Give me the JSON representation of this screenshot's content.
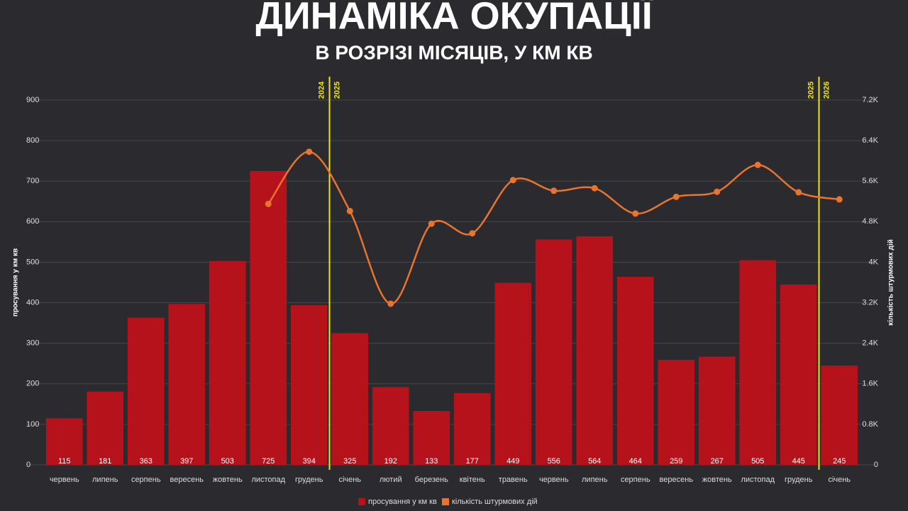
{
  "chart_data": {
    "type": "bar",
    "title": "ДИНАМІКА ОКУПАЦІЇ",
    "subtitle": "В РОЗРІЗІ МІСЯЦІВ, У КМ КВ",
    "ylabel": "просування у км кв",
    "y2label": "кількість штурмових дій",
    "categories": [
      "червень",
      "липень",
      "серпень",
      "вересень",
      "жовтень",
      "листопад",
      "грудень",
      "січень",
      "лютий",
      "березень",
      "квітень",
      "травень",
      "червень",
      "липень",
      "серпень",
      "вересень",
      "жовтень",
      "листопад",
      "грудень",
      "січень"
    ],
    "series": [
      {
        "name": "просування у км кв",
        "color": "#b5121b",
        "values": [
          115,
          181,
          363,
          397,
          503,
          725,
          394,
          325,
          192,
          133,
          177,
          449,
          556,
          564,
          464,
          259,
          267,
          505,
          445,
          245
        ]
      },
      {
        "name": "кількість штурмових дій",
        "color": "#e8742e",
        "axis": "y2",
        "type": "line",
        "values": [
          null,
          null,
          null,
          null,
          null,
          5150,
          6180,
          5010,
          3180,
          4760,
          4570,
          5620,
          5410,
          5460,
          4960,
          5290,
          5390,
          5920,
          5380,
          5240
        ]
      }
    ],
    "ylim": [
      0,
      900
    ],
    "yticks": [
      0,
      100,
      200,
      300,
      400,
      500,
      600,
      700,
      800,
      900
    ],
    "y2lim": [
      0,
      7200
    ],
    "y2ticks": [
      0,
      {
        "value": 800,
        "label": "0.8K"
      },
      {
        "value": 1600,
        "label": "1.6K"
      },
      {
        "value": 2400,
        "label": "2.4K"
      },
      {
        "value": 3200,
        "label": "3.2K"
      },
      {
        "value": 4000,
        "label": "4K"
      },
      {
        "value": 4800,
        "label": "4.8K"
      },
      {
        "value": 5600,
        "label": "5.6K"
      },
      {
        "value": 6400,
        "label": "6.4K"
      },
      {
        "value": 7200,
        "label": "7.2K"
      }
    ],
    "grid": true,
    "year_markers": [
      {
        "before": "2024",
        "after": "2025"
      },
      {
        "before": "2025",
        "after": "2026"
      }
    ]
  }
}
